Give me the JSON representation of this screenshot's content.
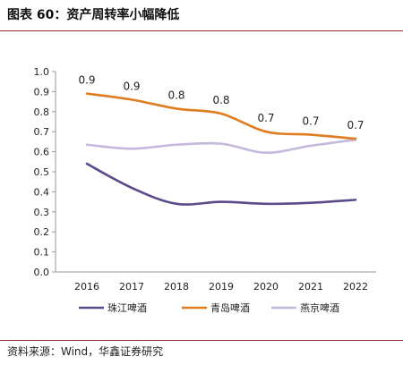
{
  "header": {
    "title": "图表 60：资产周转率小幅降低"
  },
  "footer": {
    "source": "资料来源：Wind，华鑫证券研究"
  },
  "chart_data": {
    "type": "line",
    "title": "",
    "xlabel": "",
    "ylabel": "",
    "categories": [
      "2016",
      "2017",
      "2018",
      "2019",
      "2020",
      "2021",
      "2022"
    ],
    "ylim": [
      0.0,
      1.0
    ],
    "yticks": [
      "0.0",
      "0.1",
      "0.2",
      "0.3",
      "0.4",
      "0.5",
      "0.6",
      "0.7",
      "0.8",
      "0.9",
      "1.0"
    ],
    "grid": false,
    "legend_position": "bottom",
    "series": [
      {
        "name": "珠江啤酒",
        "color": "#5b4a8b",
        "values": [
          0.54,
          0.42,
          0.34,
          0.35,
          0.34,
          0.345,
          0.36
        ],
        "labels": null
      },
      {
        "name": "青岛啤酒",
        "color": "#e07b20",
        "values": [
          0.89,
          0.86,
          0.815,
          0.79,
          0.7,
          0.685,
          0.665
        ],
        "labels": [
          "0.9",
          "0.9",
          "0.8",
          "0.8",
          "0.7",
          "0.7",
          "0.7"
        ]
      },
      {
        "name": "燕京啤酒",
        "color": "#c4b8dc",
        "values": [
          0.635,
          0.615,
          0.635,
          0.64,
          0.595,
          0.63,
          0.66
        ],
        "labels": null
      }
    ]
  }
}
